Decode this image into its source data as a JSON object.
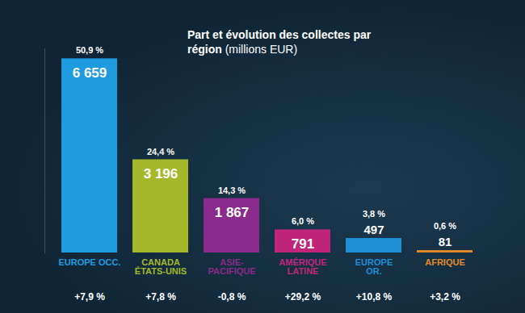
{
  "chart_data": {
    "type": "bar",
    "title": "Part et évolution des collectes par région",
    "subtitle": "(millions EUR)",
    "categories": [
      "EUROPE OCC.",
      "CANADA\nÉTATS-UNIS",
      "ASIE-\nPACIFIQUE",
      "AMÉRIQUE\nLATINE",
      "EUROPE\nOR.",
      "AFRIQUE"
    ],
    "values": [
      6659,
      3196,
      1867,
      791,
      497,
      81
    ],
    "value_labels": [
      "6 659",
      "3 196",
      "1 867",
      "791",
      "497",
      "81"
    ],
    "shares": [
      50.9,
      24.4,
      14.3,
      6.0,
      3.8,
      0.6
    ],
    "share_labels": [
      "50,9 %",
      "24,4 %",
      "14,3 %",
      "6,0 %",
      "3,8 %",
      "0,6 %"
    ],
    "changes": [
      7.9,
      7.8,
      -0.8,
      29.2,
      10.8,
      3.2
    ],
    "change_labels": [
      "+7,9 %",
      "+7,8 %",
      "-0,8 %",
      "+29,2 %",
      "+10,8 %",
      "+3,2 %"
    ],
    "colors": [
      "#1f9be0",
      "#a5b82a",
      "#8a2a8c",
      "#c0257a",
      "#1e8fd6",
      "#e08a2a"
    ],
    "ylim": [
      0,
      7000
    ],
    "data_labels": true,
    "tick_labels": false
  }
}
